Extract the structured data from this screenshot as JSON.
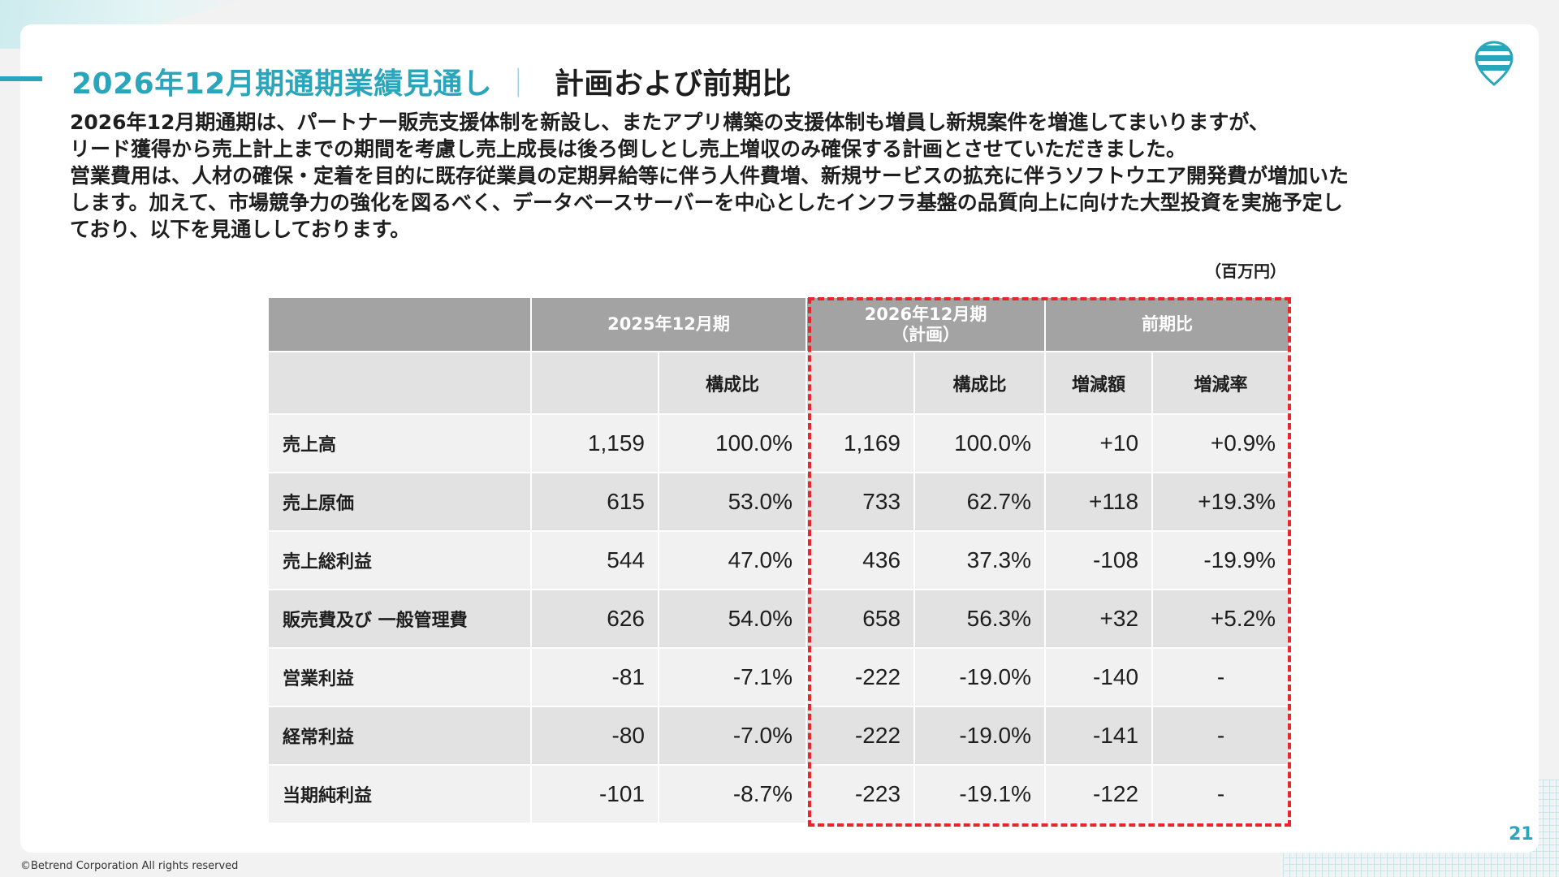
{
  "title": {
    "main": "2026年12月期通期業績見通し",
    "separator": "｜",
    "sub": "計画および前期比"
  },
  "description": [
    "2026年12月期通期は、パートナー販売支援体制を新設し、またアプリ構築の支援体制も増員し新規案件を増進してまいりますが、",
    "リード獲得から売上計上までの期間を考慮し売上成長は後ろ倒しとし売上増収のみ確保する計画とさせていただきました。",
    "営業費用は、人材の確保・定着を目的に既存従業員の定期昇給等に伴う人件費増、新規サービスの拡充に伴うソフトウエア開発費が増加いた",
    "します。加えて、市場競争力の強化を図るべく、データベースサーバーを中心としたインフラ基盤の品質向上に向けた大型投資を実施予定し",
    "ており、以下を見通ししております。"
  ],
  "unit": "（百万円）",
  "table": {
    "group_headers": {
      "prior": "2025年12月期",
      "plan_line1": "2026年12月期",
      "plan_line2": "（計画）",
      "yoy": "前期比"
    },
    "sub_headers": {
      "prior_ratio": "構成比",
      "plan_ratio": "構成比",
      "change_amount": "増減額",
      "change_rate": "増減率"
    },
    "rows": [
      {
        "label": "売上高",
        "prior": "1,159",
        "prior_ratio": "100.0%",
        "plan": "1,169",
        "plan_ratio": "100.0%",
        "change": "+10",
        "rate": "+0.9%"
      },
      {
        "label": "売上原価",
        "prior": "615",
        "prior_ratio": "53.0%",
        "plan": "733",
        "plan_ratio": "62.7%",
        "change": "+118",
        "rate": "+19.3%"
      },
      {
        "label": "売上総利益",
        "prior": "544",
        "prior_ratio": "47.0%",
        "plan": "436",
        "plan_ratio": "37.3%",
        "change": "-108",
        "rate": "-19.9%"
      },
      {
        "label": "販売費及び 一般管理費",
        "prior": "626",
        "prior_ratio": "54.0%",
        "plan": "658",
        "plan_ratio": "56.3%",
        "change": "+32",
        "rate": "+5.2%"
      },
      {
        "label": "営業利益",
        "prior": "-81",
        "prior_ratio": "-7.1%",
        "plan": "-222",
        "plan_ratio": "-19.0%",
        "change": "-140",
        "rate": "-"
      },
      {
        "label": "経常利益",
        "prior": "-80",
        "prior_ratio": "-7.0%",
        "plan": "-222",
        "plan_ratio": "-19.0%",
        "change": "-141",
        "rate": "-"
      },
      {
        "label": "当期純利益",
        "prior": "-101",
        "prior_ratio": "-8.7%",
        "plan": "-223",
        "plan_ratio": "-19.1%",
        "change": "-122",
        "rate": "-"
      }
    ]
  },
  "page_number": "21",
  "copyright": "©Betrend Corporation All rights reserved",
  "colors": {
    "accent": "#2aa6bc",
    "highlight_border": "#e8262b",
    "header_gray": "#a3a3a3"
  },
  "icons": {
    "logo": "betrend-logo-icon"
  }
}
